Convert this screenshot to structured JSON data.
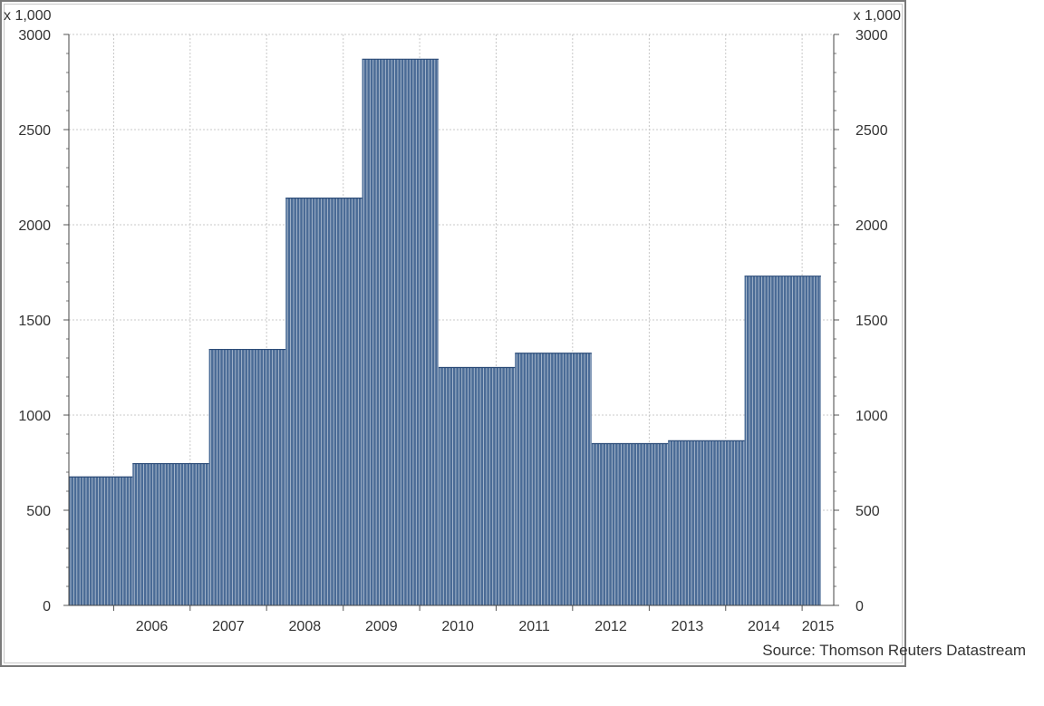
{
  "chart_data": {
    "type": "bar",
    "title": "",
    "xlabel": "",
    "ylabel": "",
    "unit_left": "x 1,000",
    "unit_right": "x 1,000",
    "ylim": [
      0,
      3000
    ],
    "y_ticks": [
      "0",
      "500",
      "1000",
      "1500",
      "2000",
      "2500",
      "3000"
    ],
    "x_ticks": [
      "2006",
      "2007",
      "2008",
      "2009",
      "2010",
      "2011",
      "2012",
      "2013",
      "2014",
      "2015"
    ],
    "x_domain": [
      "2005-06-01",
      "2015-06-01"
    ],
    "grid": true,
    "legend": "none",
    "bar_color": "#4a6b96",
    "bar_edge_color": "#ffffff",
    "series": [
      {
        "segments": [
          {
            "start": "2005-06-01",
            "end": "2006-04-01",
            "value": 675
          },
          {
            "start": "2006-04-01",
            "end": "2007-04-01",
            "value": 745
          },
          {
            "start": "2007-04-01",
            "end": "2008-04-01",
            "value": 1345
          },
          {
            "start": "2008-04-01",
            "end": "2009-04-01",
            "value": 2140
          },
          {
            "start": "2009-04-01",
            "end": "2010-04-01",
            "value": 2870
          },
          {
            "start": "2010-04-01",
            "end": "2011-04-01",
            "value": 1250
          },
          {
            "start": "2011-04-01",
            "end": "2012-04-01",
            "value": 1325
          },
          {
            "start": "2012-04-01",
            "end": "2013-04-01",
            "value": 850
          },
          {
            "start": "2013-04-01",
            "end": "2014-04-01",
            "value": 865
          },
          {
            "start": "2014-04-01",
            "end": "2015-04-01",
            "value": 1730
          }
        ]
      }
    ]
  },
  "source": "Source: Thomson Reuters Datastream"
}
